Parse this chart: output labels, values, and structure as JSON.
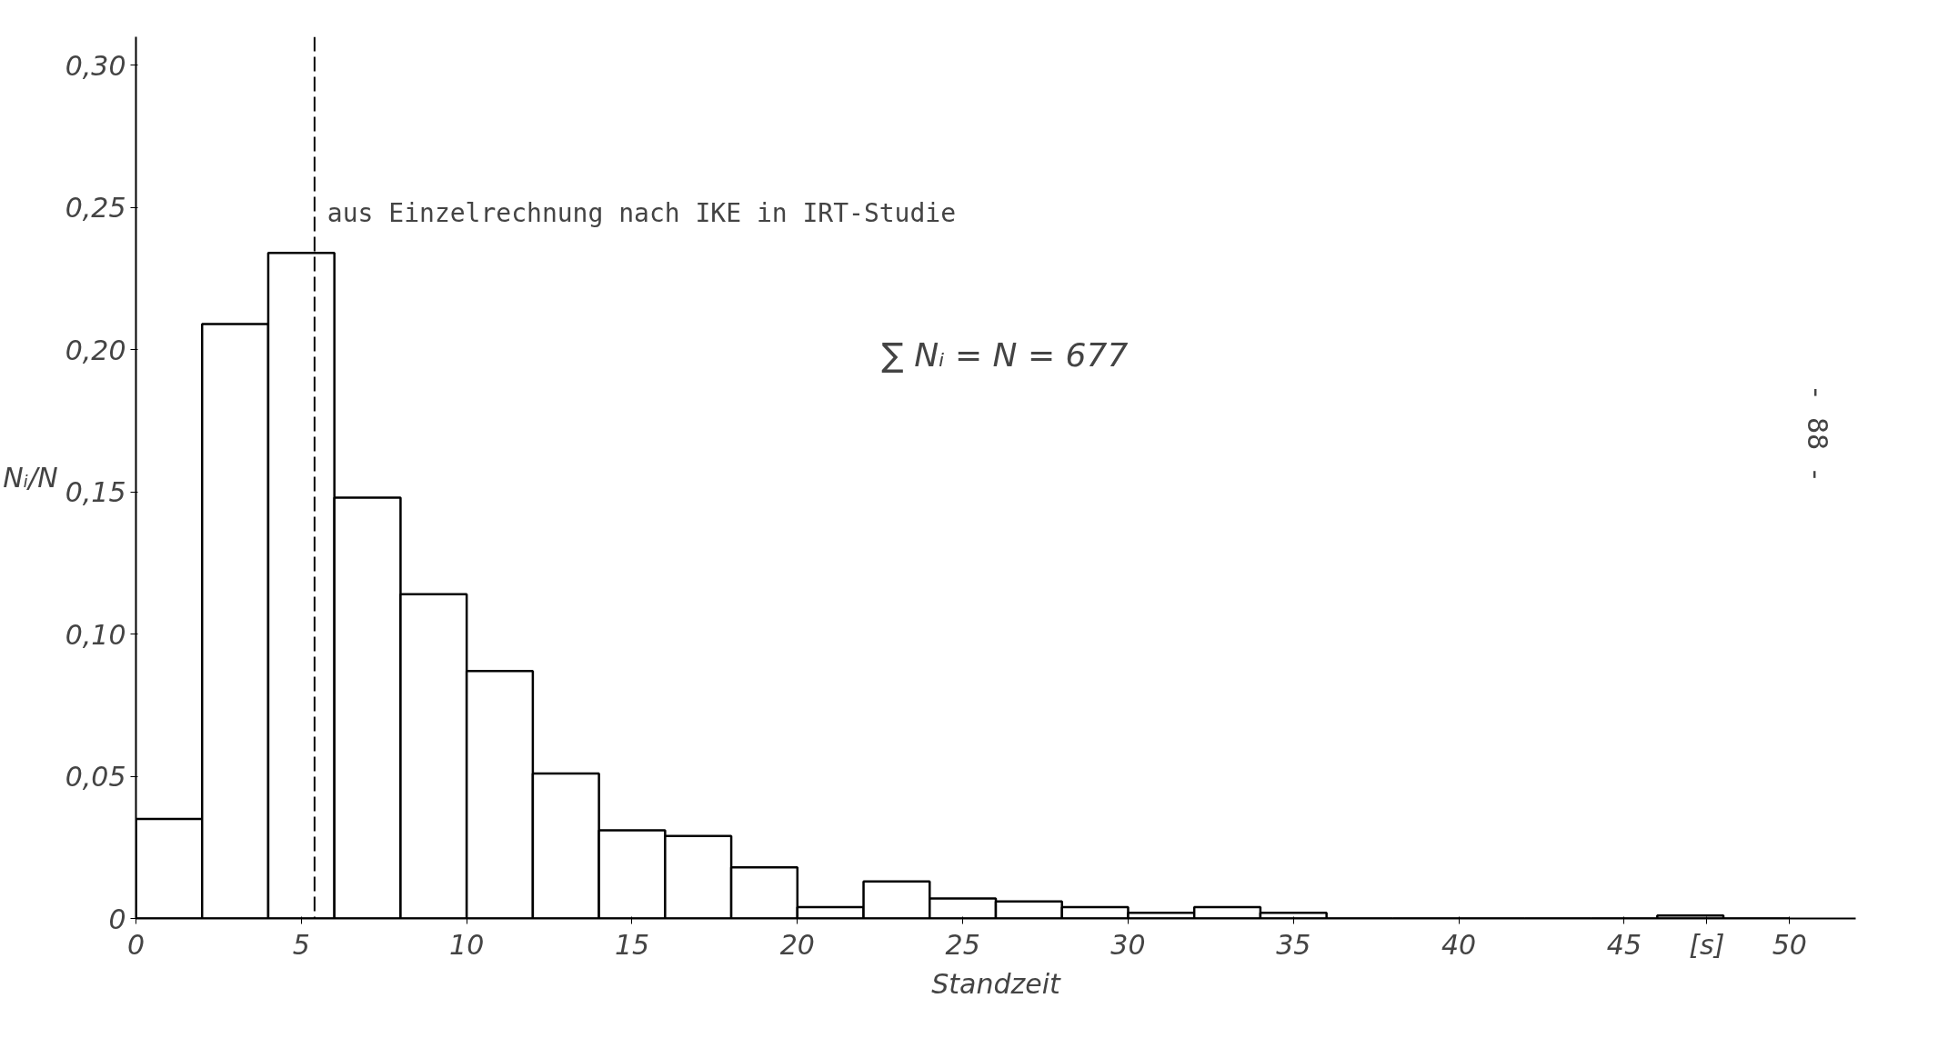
{
  "chart_data": {
    "type": "histogram",
    "bins": [
      0,
      2,
      4,
      6,
      8,
      10,
      12,
      14,
      16,
      18,
      20,
      22,
      24,
      26,
      28,
      30,
      32,
      34,
      36,
      38,
      40,
      42,
      44,
      46,
      48,
      50
    ],
    "values": [
      0.035,
      0.209,
      0.234,
      0.148,
      0.114,
      0.087,
      0.051,
      0.031,
      0.029,
      0.018,
      0.004,
      0.013,
      0.007,
      0.006,
      0.004,
      0.002,
      0.004,
      0.002,
      0,
      0,
      0,
      0,
      0,
      0.001,
      0
    ],
    "color": "#000000",
    "xlabel": "Standzeit",
    "ylabel": "Nᵢ/N",
    "xlim": [
      0,
      52
    ],
    "ylim": [
      0,
      0.31
    ],
    "xticks": [
      0,
      5,
      10,
      15,
      20,
      25,
      30,
      35,
      40,
      45,
      {
        "value": 47.5,
        "label": "[s]"
      },
      50
    ],
    "yticks": [
      0,
      {
        "value": 0.05,
        "label": "0,05"
      },
      {
        "value": 0.1,
        "label": "0,10"
      },
      {
        "value": 0.15,
        "label": "0,15"
      },
      {
        "value": 0.2,
        "label": "0,20"
      },
      {
        "value": 0.25,
        "label": "0,25"
      },
      {
        "value": 0.3,
        "label": "0,30"
      }
    ],
    "ref_lines": [
      {
        "axis": "x",
        "value": 5.4,
        "label": "aus Einzelrechnung nach IKE in IRT-Studie",
        "line_style": "dashed"
      }
    ],
    "annotations": [
      "∑ Nᵢ = N = 677",
      "- 88 -"
    ],
    "grid": false
  }
}
